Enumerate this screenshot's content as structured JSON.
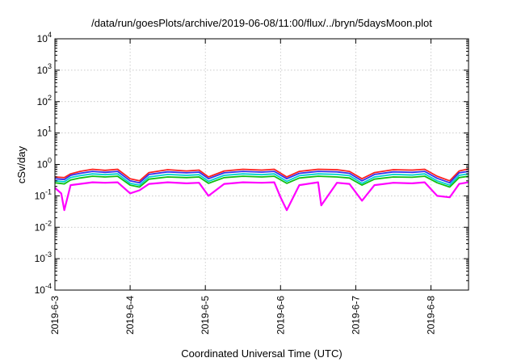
{
  "chart_data": {
    "type": "line",
    "title": "/data/run/goesPlots/archive/2019-06-08/11:00/flux/../bryn/5daysMoon.plot",
    "xlabel": "Coordinated Universal Time (UTC)",
    "ylabel": "cSv/day",
    "yscale": "log",
    "ylim": [
      0.0001,
      10000
    ],
    "y_ticks": [
      {
        "base": "10",
        "exp": "-4"
      },
      {
        "base": "10",
        "exp": "-3"
      },
      {
        "base": "10",
        "exp": "-2"
      },
      {
        "base": "10",
        "exp": "-1"
      },
      {
        "base": "10",
        "exp": "0"
      },
      {
        "base": "10",
        "exp": "1"
      },
      {
        "base": "10",
        "exp": "2"
      },
      {
        "base": "10",
        "exp": "3"
      },
      {
        "base": "10",
        "exp": "4"
      }
    ],
    "x_ticks": [
      "2019-6-3",
      "2019-6-4",
      "2019-6-5",
      "2019-6-6",
      "2019-6-7",
      "2019-6-8"
    ],
    "xlim": [
      "2019-06-03",
      "2019-06-08T12:00"
    ],
    "grid": true,
    "colors": [
      "#ff00ff",
      "#3333ee",
      "#00d0d0",
      "#10c010",
      "#ff2020"
    ],
    "series": [
      {
        "color": "#ff2020",
        "x": [
          "2019-06-03T00:00",
          "2019-06-03T03:00",
          "2019-06-03T05:00",
          "2019-06-03T08:00",
          "2019-06-03T12:00",
          "2019-06-03T16:00",
          "2019-06-03T20:00",
          "2019-06-04T00:00",
          "2019-06-04T03:00",
          "2019-06-04T06:00",
          "2019-06-04T12:00",
          "2019-06-04T18:00",
          "2019-06-04T22:00",
          "2019-06-05T01:00",
          "2019-06-05T06:00",
          "2019-06-05T12:00",
          "2019-06-05T18:00",
          "2019-06-05T22:00",
          "2019-06-06T02:00",
          "2019-06-06T06:00",
          "2019-06-06T12:00",
          "2019-06-06T18:00",
          "2019-06-06T22:00",
          "2019-06-07T02:00",
          "2019-06-07T06:00",
          "2019-06-07T12:00",
          "2019-06-07T18:00",
          "2019-06-07T22:00",
          "2019-06-08T02:00",
          "2019-06-08T06:00",
          "2019-06-08T09:00",
          "2019-06-08T12:00"
        ],
        "values": [
          0.4,
          0.38,
          0.5,
          0.6,
          0.7,
          0.65,
          0.7,
          0.35,
          0.3,
          0.55,
          0.68,
          0.62,
          0.66,
          0.4,
          0.62,
          0.7,
          0.66,
          0.7,
          0.4,
          0.6,
          0.7,
          0.68,
          0.6,
          0.35,
          0.55,
          0.68,
          0.66,
          0.7,
          0.42,
          0.3,
          0.62,
          0.72
        ]
      },
      {
        "color": "#3333ee",
        "x": [
          "2019-06-03T00:00",
          "2019-06-03T03:00",
          "2019-06-03T05:00",
          "2019-06-03T08:00",
          "2019-06-03T12:00",
          "2019-06-03T16:00",
          "2019-06-03T20:00",
          "2019-06-04T00:00",
          "2019-06-04T03:00",
          "2019-06-04T06:00",
          "2019-06-04T12:00",
          "2019-06-04T18:00",
          "2019-06-04T22:00",
          "2019-06-05T01:00",
          "2019-06-05T06:00",
          "2019-06-05T12:00",
          "2019-06-05T18:00",
          "2019-06-05T22:00",
          "2019-06-06T02:00",
          "2019-06-06T06:00",
          "2019-06-06T12:00",
          "2019-06-06T18:00",
          "2019-06-06T22:00",
          "2019-06-07T02:00",
          "2019-06-07T06:00",
          "2019-06-07T12:00",
          "2019-06-07T18:00",
          "2019-06-07T22:00",
          "2019-06-08T02:00",
          "2019-06-08T06:00",
          "2019-06-08T09:00",
          "2019-06-08T12:00"
        ],
        "values": [
          0.35,
          0.33,
          0.45,
          0.52,
          0.6,
          0.56,
          0.6,
          0.3,
          0.26,
          0.48,
          0.58,
          0.54,
          0.57,
          0.35,
          0.54,
          0.6,
          0.57,
          0.6,
          0.35,
          0.52,
          0.6,
          0.58,
          0.52,
          0.3,
          0.48,
          0.58,
          0.56,
          0.6,
          0.36,
          0.26,
          0.54,
          0.6
        ]
      },
      {
        "color": "#00d0d0",
        "x": [
          "2019-06-03T00:00",
          "2019-06-03T03:00",
          "2019-06-03T05:00",
          "2019-06-03T08:00",
          "2019-06-03T12:00",
          "2019-06-03T16:00",
          "2019-06-03T20:00",
          "2019-06-04T00:00",
          "2019-06-04T03:00",
          "2019-06-04T06:00",
          "2019-06-04T12:00",
          "2019-06-04T18:00",
          "2019-06-04T22:00",
          "2019-06-05T01:00",
          "2019-06-05T06:00",
          "2019-06-05T12:00",
          "2019-06-05T18:00",
          "2019-06-05T22:00",
          "2019-06-06T02:00",
          "2019-06-06T06:00",
          "2019-06-06T12:00",
          "2019-06-06T18:00",
          "2019-06-06T22:00",
          "2019-06-07T02:00",
          "2019-06-07T06:00",
          "2019-06-07T12:00",
          "2019-06-07T18:00",
          "2019-06-07T22:00",
          "2019-06-08T02:00",
          "2019-06-08T06:00",
          "2019-06-08T09:00",
          "2019-06-08T12:00"
        ],
        "values": [
          0.3,
          0.28,
          0.38,
          0.44,
          0.5,
          0.47,
          0.5,
          0.25,
          0.22,
          0.4,
          0.48,
          0.45,
          0.47,
          0.29,
          0.45,
          0.5,
          0.47,
          0.5,
          0.29,
          0.44,
          0.5,
          0.48,
          0.44,
          0.25,
          0.4,
          0.48,
          0.46,
          0.5,
          0.3,
          0.22,
          0.45,
          0.5
        ]
      },
      {
        "color": "#10c010",
        "x": [
          "2019-06-03T00:00",
          "2019-06-03T03:00",
          "2019-06-03T05:00",
          "2019-06-03T08:00",
          "2019-06-03T12:00",
          "2019-06-03T16:00",
          "2019-06-03T20:00",
          "2019-06-04T00:00",
          "2019-06-04T03:00",
          "2019-06-04T06:00",
          "2019-06-04T12:00",
          "2019-06-04T18:00",
          "2019-06-04T22:00",
          "2019-06-05T01:00",
          "2019-06-05T06:00",
          "2019-06-05T12:00",
          "2019-06-05T18:00",
          "2019-06-05T22:00",
          "2019-06-06T02:00",
          "2019-06-06T06:00",
          "2019-06-06T12:00",
          "2019-06-06T18:00",
          "2019-06-06T22:00",
          "2019-06-07T02:00",
          "2019-06-07T06:00",
          "2019-06-07T12:00",
          "2019-06-07T18:00",
          "2019-06-07T22:00",
          "2019-06-08T02:00",
          "2019-06-08T06:00",
          "2019-06-08T09:00",
          "2019-06-08T12:00"
        ],
        "values": [
          0.26,
          0.24,
          0.32,
          0.37,
          0.42,
          0.4,
          0.42,
          0.22,
          0.19,
          0.34,
          0.4,
          0.38,
          0.4,
          0.25,
          0.38,
          0.42,
          0.4,
          0.42,
          0.25,
          0.37,
          0.42,
          0.4,
          0.37,
          0.22,
          0.34,
          0.4,
          0.39,
          0.42,
          0.26,
          0.19,
          0.38,
          0.42
        ]
      },
      {
        "color": "#ff00ff",
        "x": [
          "2019-06-03T00:00",
          "2019-06-03T02:00",
          "2019-06-03T03:00",
          "2019-06-03T05:00",
          "2019-06-03T08:00",
          "2019-06-03T12:00",
          "2019-06-03T16:00",
          "2019-06-03T20:00",
          "2019-06-04T00:00",
          "2019-06-04T03:00",
          "2019-06-04T06:00",
          "2019-06-04T12:00",
          "2019-06-04T18:00",
          "2019-06-04T22:00",
          "2019-06-05T01:00",
          "2019-06-05T06:00",
          "2019-06-05T12:00",
          "2019-06-05T18:00",
          "2019-06-05T22:00",
          "2019-06-06T00:00",
          "2019-06-06T02:00",
          "2019-06-06T06:00",
          "2019-06-06T12:00",
          "2019-06-06T13:00",
          "2019-06-06T18:00",
          "2019-06-06T22:00",
          "2019-06-07T02:00",
          "2019-06-07T06:00",
          "2019-06-07T12:00",
          "2019-06-07T18:00",
          "2019-06-07T22:00",
          "2019-06-08T02:00",
          "2019-06-08T06:00",
          "2019-06-08T09:00",
          "2019-06-08T12:00"
        ],
        "values": [
          0.18,
          0.12,
          0.035,
          0.22,
          0.24,
          0.27,
          0.26,
          0.27,
          0.12,
          0.15,
          0.24,
          0.27,
          0.25,
          0.26,
          0.1,
          0.24,
          0.27,
          0.26,
          0.27,
          0.09,
          0.035,
          0.22,
          0.27,
          0.05,
          0.26,
          0.24,
          0.07,
          0.22,
          0.26,
          0.25,
          0.27,
          0.1,
          0.09,
          0.24,
          0.27
        ]
      }
    ]
  }
}
